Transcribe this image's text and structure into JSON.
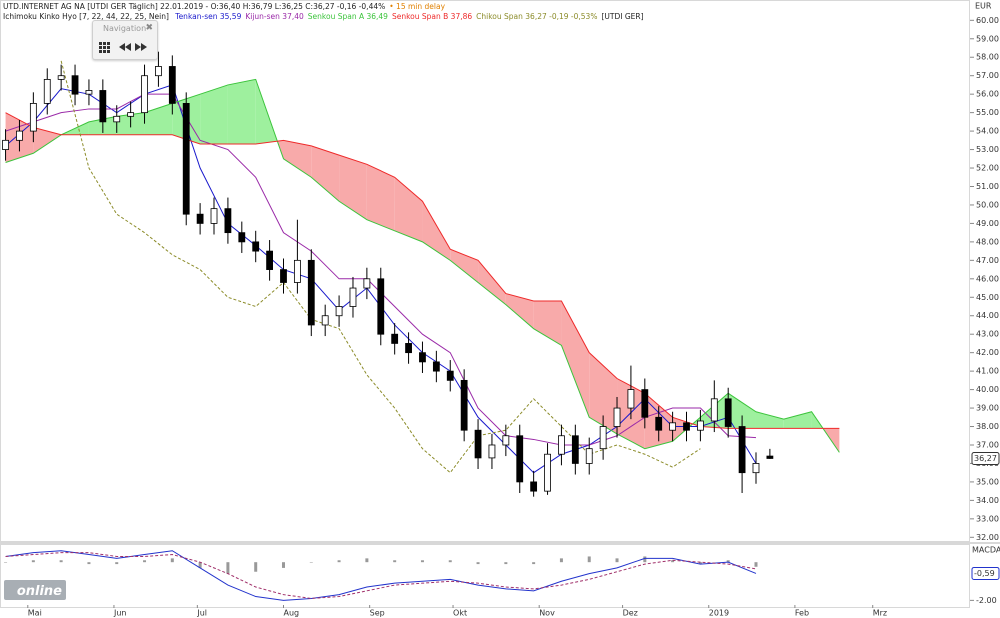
{
  "navigation": {
    "title": "Navigation"
  },
  "logo": "online",
  "chart_data": [
    {
      "type": "candlestick",
      "title": "UTD.INTERNET AG NA [UTDI GER Täglich] 22.01.2019 - O:36,40 H:36,79 L:36,25 C:36,27 -0,16 -0,44%",
      "subtitle": "• 15 min delay",
      "indicator_label": "Ichimoku Kinko Hyo [7, 22, 44, 22, 25, Nein]",
      "symbol_label": "[UTDI GER]",
      "y_label": "EUR",
      "last_price_label": "36,27",
      "up_color": "#ffffff",
      "down_color": "#000000",
      "candle_outline": "#000000",
      "xlim": [
        -10,
        339
      ],
      "ylim": [
        31.8,
        61.1
      ],
      "yticks": [
        {
          "value": 32,
          "label": "32.00"
        },
        {
          "value": 33,
          "label": "33.00"
        },
        {
          "value": 34,
          "label": "34.00"
        },
        {
          "value": 35,
          "label": "35.00"
        },
        {
          "value": 36,
          "label": "36.00"
        },
        {
          "value": 37,
          "label": "37.00"
        },
        {
          "value": 38,
          "label": "38.00"
        },
        {
          "value": 39,
          "label": "39.00"
        },
        {
          "value": 40,
          "label": "40.00"
        },
        {
          "value": 41,
          "label": "41.00"
        },
        {
          "value": 42,
          "label": "42.00"
        },
        {
          "value": 43,
          "label": "43.00"
        },
        {
          "value": 44,
          "label": "44.00"
        },
        {
          "value": 45,
          "label": "45.00"
        },
        {
          "value": 46,
          "label": "46.00"
        },
        {
          "value": 47,
          "label": "47.00"
        },
        {
          "value": 48,
          "label": "48.00"
        },
        {
          "value": 49,
          "label": "49.00"
        },
        {
          "value": 50,
          "label": "50.00"
        },
        {
          "value": 51,
          "label": "51.00"
        },
        {
          "value": 52,
          "label": "52.00"
        },
        {
          "value": 53,
          "label": "53.00"
        },
        {
          "value": 54,
          "label": "54.00"
        },
        {
          "value": 55,
          "label": "55.00"
        },
        {
          "value": 56,
          "label": "56.00"
        },
        {
          "value": 57,
          "label": "57.00"
        },
        {
          "value": 58,
          "label": "58.00"
        },
        {
          "value": 59,
          "label": "59.00"
        },
        {
          "value": 60,
          "label": "60.00"
        }
      ],
      "x": [
        -8,
        -3,
        2,
        7,
        12,
        17,
        22,
        27,
        32,
        37,
        42,
        47,
        52,
        57,
        62,
        67,
        72,
        77,
        82,
        87,
        92,
        97,
        102,
        107,
        112,
        117,
        122,
        127,
        132,
        137,
        142,
        147,
        152,
        157,
        162,
        167,
        172,
        177,
        182,
        187,
        192,
        197,
        202,
        207,
        212,
        217,
        222,
        227,
        232,
        237,
        242,
        247,
        252,
        257,
        262,
        267
      ],
      "open": [
        53.0,
        53.5,
        54.0,
        55.5,
        56.8,
        57.0,
        56.0,
        56.2,
        54.5,
        54.8,
        55.0,
        57.0,
        57.5,
        55.5,
        49.5,
        49.0,
        49.8,
        48.5,
        48.0,
        47.5,
        46.5,
        45.8,
        47.0,
        43.5,
        44.0,
        44.5,
        45.5,
        46.0,
        43.0,
        42.5,
        42.0,
        41.5,
        41.0,
        40.5,
        37.8,
        36.3,
        37.0,
        37.5,
        35.0,
        34.5,
        36.5,
        37.5,
        36.0,
        36.8,
        38.0,
        39.0,
        40.0,
        38.5,
        37.8,
        38.2,
        37.8,
        38.3,
        39.5,
        38.0,
        35.5,
        36.4
      ],
      "high": [
        54.1,
        54.6,
        56.1,
        57.4,
        57.6,
        57.6,
        56.8,
        56.8,
        55.4,
        55.6,
        57.6,
        58.3,
        58.1,
        56.1,
        50.1,
        50.4,
        50.4,
        49.1,
        48.6,
        48.1,
        47.1,
        49.2,
        47.6,
        44.6,
        45.1,
        46.1,
        46.6,
        46.6,
        43.6,
        43.1,
        42.6,
        42.1,
        41.6,
        41.1,
        38.4,
        37.6,
        38.1,
        38.1,
        35.6,
        37.1,
        38.1,
        38.1,
        37.4,
        38.6,
        39.6,
        41.3,
        40.6,
        39.1,
        38.8,
        38.8,
        38.9,
        40.5,
        40.1,
        38.6,
        36.6,
        36.79
      ],
      "low": [
        52.4,
        52.9,
        53.4,
        54.9,
        56.2,
        55.4,
        55.4,
        53.9,
        53.9,
        54.2,
        54.4,
        56.4,
        54.9,
        48.9,
        48.4,
        48.4,
        47.9,
        47.4,
        46.9,
        45.9,
        45.2,
        45.2,
        42.9,
        42.9,
        43.4,
        43.9,
        44.9,
        42.4,
        41.9,
        41.4,
        40.9,
        40.4,
        39.9,
        37.2,
        35.7,
        35.7,
        36.4,
        34.4,
        34.2,
        34.3,
        35.9,
        35.4,
        35.4,
        36.2,
        37.4,
        38.4,
        37.9,
        37.2,
        37.2,
        37.2,
        37.2,
        37.7,
        37.4,
        34.4,
        34.9,
        36.25
      ],
      "close": [
        53.5,
        54.0,
        55.5,
        56.8,
        57.0,
        56.0,
        56.2,
        54.5,
        54.8,
        55.0,
        57.0,
        57.5,
        55.5,
        49.5,
        49.0,
        49.8,
        48.5,
        48.0,
        47.5,
        46.5,
        45.8,
        47.0,
        43.5,
        44.0,
        44.5,
        45.5,
        46.0,
        43.0,
        42.5,
        42.0,
        41.5,
        41.0,
        40.5,
        37.8,
        36.3,
        37.0,
        37.5,
        35.0,
        34.5,
        36.5,
        37.5,
        36.0,
        36.8,
        38.0,
        39.0,
        40.0,
        38.5,
        37.8,
        38.2,
        37.8,
        38.3,
        39.5,
        38.0,
        35.5,
        36.0,
        36.27
      ],
      "cloud": {
        "series": [
          2,
          3
        ],
        "up_color": "#9ef09e",
        "down_color": "#f8aaaa"
      },
      "series": [
        {
          "name": "Tenkan-sen 35,59",
          "color": "#1a1acc",
          "dash": false,
          "x": [
            -8,
            2,
            12,
            22,
            32,
            42,
            52,
            62,
            72,
            82,
            92,
            102,
            112,
            122,
            132,
            142,
            152,
            162,
            172,
            182,
            192,
            202,
            212,
            222,
            232,
            242,
            252,
            262
          ],
          "values": [
            53.2,
            54.5,
            56.3,
            56.0,
            55.0,
            56.0,
            56.5,
            52.0,
            49.0,
            47.8,
            46.5,
            46.0,
            44.3,
            45.5,
            43.5,
            42.0,
            41.0,
            38.5,
            37.0,
            35.5,
            36.5,
            37.0,
            38.0,
            39.5,
            38.0,
            38.0,
            38.5,
            36.0
          ]
        },
        {
          "name": "Kijun-sen 37,40",
          "color": "#9a2aa8",
          "dash": false,
          "x": [
            -8,
            2,
            12,
            22,
            32,
            42,
            52,
            62,
            72,
            82,
            92,
            102,
            112,
            122,
            132,
            142,
            152,
            162,
            172,
            182,
            192,
            202,
            212,
            222,
            232,
            242,
            252,
            262
          ],
          "values": [
            54.0,
            54.5,
            55.0,
            55.2,
            55.2,
            56.0,
            56.0,
            53.5,
            53.0,
            51.5,
            48.5,
            47.5,
            46.0,
            46.0,
            44.5,
            43.0,
            42.0,
            39.0,
            37.5,
            37.3,
            37.0,
            37.0,
            37.5,
            38.5,
            39.0,
            39.0,
            37.5,
            37.4
          ]
        },
        {
          "name": "Senkou Span A 36,49",
          "color": "#3cc43c",
          "dash": false,
          "x": [
            -8,
            2,
            12,
            22,
            32,
            42,
            52,
            62,
            72,
            82,
            92,
            102,
            112,
            122,
            132,
            142,
            152,
            162,
            172,
            182,
            192,
            202,
            212,
            222,
            232,
            242,
            252,
            262,
            272,
            282,
            292
          ],
          "values": [
            52.3,
            52.8,
            53.8,
            54.5,
            54.8,
            55.0,
            55.5,
            56.0,
            56.5,
            56.8,
            52.5,
            51.5,
            50.2,
            49.2,
            48.6,
            48.0,
            47.0,
            45.8,
            44.6,
            43.3,
            42.4,
            38.5,
            37.6,
            36.8,
            37.2,
            38.5,
            39.8,
            38.8,
            38.4,
            38.8,
            36.6
          ]
        },
        {
          "name": "Senkou Span B 37,86",
          "color": "#ee2a2a",
          "dash": false,
          "x": [
            -8,
            2,
            12,
            22,
            32,
            42,
            52,
            62,
            72,
            82,
            92,
            102,
            112,
            122,
            132,
            142,
            152,
            162,
            172,
            182,
            192,
            202,
            212,
            222,
            232,
            242,
            252,
            262,
            272,
            282,
            292
          ],
          "values": [
            55.0,
            54.2,
            53.8,
            53.8,
            53.8,
            53.8,
            53.8,
            53.3,
            53.3,
            53.3,
            53.5,
            53.2,
            52.7,
            52.2,
            51.5,
            50.2,
            47.6,
            47.0,
            45.2,
            44.8,
            44.8,
            42.0,
            40.6,
            39.8,
            38.5,
            38.0,
            37.9,
            37.9,
            37.9,
            37.9,
            37.9
          ]
        },
        {
          "name": "Chikou Span 36,27 -0,19 -0,53%",
          "color": "#8c8c2a",
          "dash": true,
          "x": [
            12,
            22,
            32,
            42,
            52,
            62,
            72,
            82,
            92,
            102,
            112,
            122,
            132,
            142,
            152,
            162,
            172,
            182,
            192,
            202,
            212,
            222,
            232,
            242
          ],
          "values": [
            57.8,
            52.0,
            49.5,
            48.5,
            47.3,
            46.5,
            45.0,
            44.5,
            45.8,
            43.8,
            43.3,
            40.8,
            39.0,
            36.8,
            35.5,
            37.5,
            37.8,
            39.5,
            38.0,
            36.5,
            37.0,
            36.5,
            35.8,
            36.8
          ]
        }
      ]
    },
    {
      "type": "macd",
      "y_label": "MACDA",
      "xlim": [
        -10,
        339
      ],
      "ylim": [
        -2.4,
        0.9
      ],
      "yticks": [
        {
          "value": -2,
          "label": "-2.00"
        }
      ],
      "xticks": [
        {
          "value": 0,
          "label": "Mai"
        },
        {
          "value": 31,
          "label": "Jun"
        },
        {
          "value": 61,
          "label": "Jul"
        },
        {
          "value": 92,
          "label": "Aug"
        },
        {
          "value": 123,
          "label": "Sep"
        },
        {
          "value": 153,
          "label": "Okt"
        },
        {
          "value": 184,
          "label": "Nov"
        },
        {
          "value": 214,
          "label": "Dez"
        },
        {
          "value": 245,
          "label": "2019"
        },
        {
          "value": 276,
          "label": "Feb"
        },
        {
          "value": 304,
          "label": "Mrz"
        }
      ],
      "x": [
        -8,
        2,
        12,
        22,
        32,
        42,
        52,
        62,
        72,
        82,
        92,
        102,
        112,
        122,
        132,
        142,
        152,
        162,
        172,
        182,
        192,
        202,
        212,
        222,
        232,
        242,
        252,
        262
      ],
      "histogram": {
        "color": "#999999",
        "values": [
          0,
          0.1,
          0.1,
          -0.1,
          -0.1,
          0.1,
          0.2,
          -0.3,
          -0.6,
          -0.5,
          -0.3,
          0,
          0.1,
          0.2,
          0.1,
          0.1,
          0.1,
          -0.1,
          -0.1,
          -0.1,
          0.2,
          0.3,
          0.2,
          0.3,
          0.1,
          -0.1,
          0.1,
          -0.24
        ]
      },
      "series": [
        {
          "color": "#2233cc",
          "dash": false,
          "last_label": "-0,59",
          "values": [
            0.3,
            0.5,
            0.6,
            0.4,
            0.2,
            0.4,
            0.6,
            -0.3,
            -1.2,
            -1.8,
            -2.0,
            -1.9,
            -1.7,
            -1.3,
            -1.1,
            -1.0,
            -0.9,
            -1.2,
            -1.4,
            -1.5,
            -1.0,
            -0.6,
            -0.3,
            0.2,
            0.2,
            -0.1,
            0.0,
            -0.59
          ]
        },
        {
          "color": "#a0306a",
          "dash": true,
          "values": [
            0.3,
            0.4,
            0.5,
            0.5,
            0.3,
            0.3,
            0.4,
            0.0,
            -0.6,
            -1.3,
            -1.7,
            -1.9,
            -1.8,
            -1.5,
            -1.2,
            -1.1,
            -1.0,
            -1.1,
            -1.3,
            -1.4,
            -1.2,
            -0.9,
            -0.5,
            -0.1,
            0.1,
            0.0,
            -0.1,
            -0.35
          ]
        }
      ]
    }
  ]
}
